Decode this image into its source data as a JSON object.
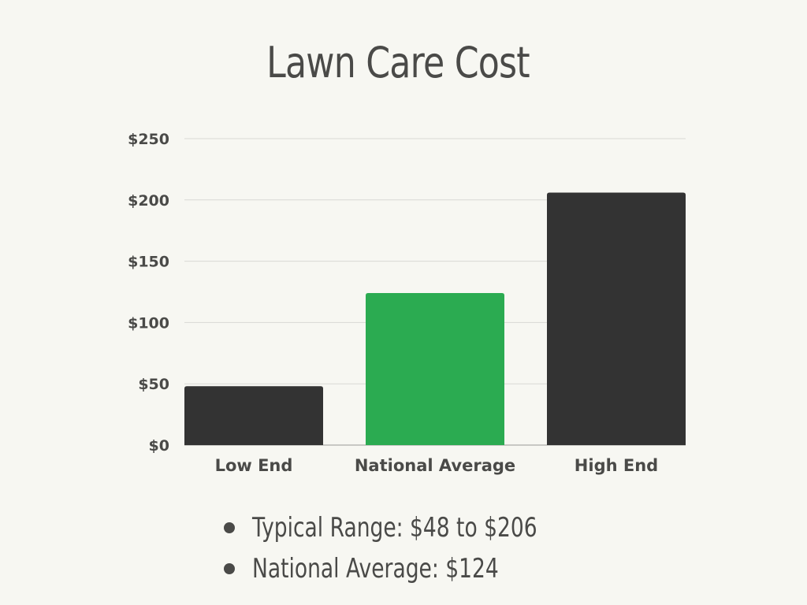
{
  "chart_data": {
    "type": "bar",
    "title": "Lawn Care Cost",
    "categories": [
      "Low End",
      "National Average",
      "High End"
    ],
    "values": [
      48,
      124,
      206
    ],
    "ylim": [
      0,
      250
    ],
    "yticks": [
      0,
      50,
      100,
      150,
      200,
      250
    ],
    "ytick_labels": [
      "$0",
      "$50",
      "$100",
      "$150",
      "$200",
      "$250"
    ],
    "xlabel": "",
    "ylabel": "",
    "grid": true,
    "legend": "none",
    "colors": [
      "#333333",
      "#2bab51",
      "#333333"
    ]
  },
  "bullets": [
    "Typical Range: $48 to $206",
    "National Average: $124"
  ]
}
